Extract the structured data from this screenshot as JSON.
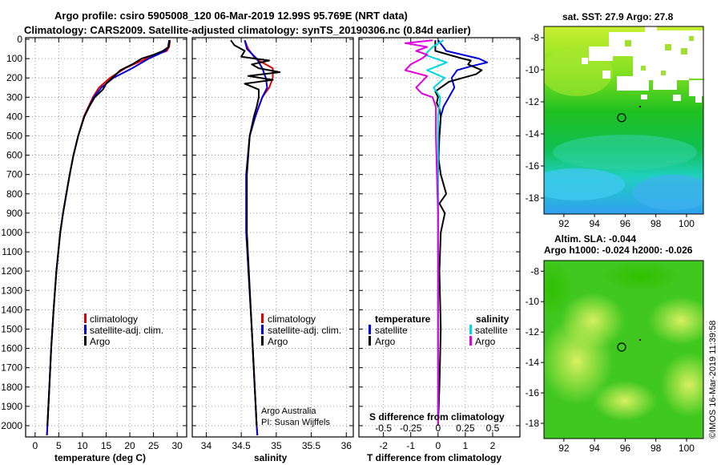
{
  "header": {
    "title_line1": "Argo profile: csiro 5905008_120 06-Mar-2019 12.99S 95.769E (NRT data)",
    "title_line2": "Climatology: CARS2009. Satellite-adjusted climatology: synTS_20190306.nc (0.84d earlier)"
  },
  "colors": {
    "climatology": "#e00000",
    "satellite": "#0000dd",
    "argo": "#000000",
    "salinity_sat": "#00d8e0",
    "salinity_argo": "#e000e0"
  },
  "chart_data": [
    {
      "type": "line",
      "id": "temperature",
      "xlabel": "temperature (deg C)",
      "ylabel": "",
      "xlim": [
        -2,
        32
      ],
      "ylim": [
        2050,
        0
      ],
      "xticks": [
        0,
        5,
        10,
        15,
        20,
        25,
        30
      ],
      "yticks": [
        0,
        100,
        200,
        300,
        400,
        500,
        600,
        700,
        800,
        900,
        1000,
        1100,
        1200,
        1300,
        1400,
        1500,
        1600,
        1700,
        1800,
        1900,
        2000
      ],
      "legend": [
        "climatology",
        "satellite-adj. clim.",
        "Argo"
      ],
      "series": [
        {
          "name": "climatology",
          "depth": [
            5,
            40,
            60,
            80,
            100,
            150,
            200,
            250,
            300,
            400,
            500,
            600,
            700,
            800,
            900,
            1000,
            1200,
            1400,
            1600,
            1800,
            2000,
            2050
          ],
          "values": [
            28.5,
            28.3,
            27.8,
            25.5,
            23.5,
            19.0,
            15.8,
            13.5,
            12.2,
            10.3,
            9.1,
            8.1,
            7.3,
            6.6,
            5.9,
            5.3,
            4.5,
            3.9,
            3.4,
            3.0,
            2.6,
            2.5
          ]
        },
        {
          "name": "satellite-adj. clim.",
          "depth": [
            5,
            40,
            60,
            80,
            100,
            150,
            200,
            250,
            300,
            400,
            500,
            600,
            700,
            800,
            900,
            1000,
            1200,
            1400,
            1600,
            1800,
            2000,
            2050
          ],
          "values": [
            28.3,
            28.1,
            27.5,
            25.8,
            24.0,
            20.5,
            16.5,
            14.0,
            12.4,
            10.4,
            9.1,
            8.1,
            7.3,
            6.6,
            5.9,
            5.3,
            4.5,
            3.9,
            3.4,
            3.0,
            2.6,
            2.5
          ]
        },
        {
          "name": "Argo",
          "depth": [
            5,
            40,
            60,
            80,
            100,
            130,
            160,
            200,
            230,
            260,
            300,
            350,
            400,
            500,
            600,
            700,
            800,
            900,
            1000,
            1200,
            1400,
            1600,
            1800,
            2000
          ],
          "values": [
            28.4,
            28.2,
            27.0,
            25.0,
            22.5,
            20.5,
            18.0,
            16.3,
            15.0,
            14.3,
            12.6,
            11.4,
            10.4,
            9.1,
            8.1,
            7.3,
            6.6,
            5.9,
            5.3,
            4.5,
            3.9,
            3.4,
            3.0,
            2.6
          ]
        }
      ]
    },
    {
      "type": "line",
      "id": "salinity",
      "xlabel": "salinity",
      "xlim": [
        33.8,
        36.1
      ],
      "ylim": [
        2050,
        0
      ],
      "xticks": [
        34,
        34.5,
        35,
        35.5,
        36
      ],
      "legend": [
        "climatology",
        "satellite-adj. clim.",
        "Argo"
      ],
      "annotation": [
        "Argo Australia",
        "PI: Susan Wijffels"
      ],
      "series": [
        {
          "name": "climatology",
          "depth": [
            5,
            50,
            100,
            150,
            200,
            250,
            300,
            350,
            400,
            500,
            700,
            1000,
            1500,
            2000,
            2050
          ],
          "values": [
            34.55,
            34.6,
            34.7,
            34.95,
            34.95,
            34.9,
            34.8,
            34.75,
            34.7,
            34.62,
            34.57,
            34.57,
            34.65,
            34.72,
            34.73
          ]
        },
        {
          "name": "satellite-adj. clim.",
          "depth": [
            5,
            50,
            100,
            150,
            200,
            250,
            300,
            350,
            400,
            500,
            700,
            1000,
            1500,
            2000,
            2050
          ],
          "values": [
            34.55,
            34.58,
            34.72,
            34.8,
            34.85,
            34.87,
            34.8,
            34.75,
            34.7,
            34.62,
            34.57,
            34.57,
            34.65,
            34.72,
            34.73
          ]
        },
        {
          "name": "Argo",
          "depth": [
            5,
            30,
            60,
            90,
            110,
            130,
            150,
            170,
            190,
            210,
            230,
            260,
            300,
            350,
            400,
            500,
            700,
            1000,
            1500,
            2000
          ],
          "values": [
            34.35,
            34.4,
            34.55,
            34.5,
            34.9,
            34.65,
            34.75,
            35.05,
            34.6,
            34.95,
            34.55,
            34.75,
            34.75,
            34.72,
            34.68,
            34.62,
            34.58,
            34.58,
            34.65,
            34.72
          ]
        }
      ]
    },
    {
      "type": "line",
      "id": "difference",
      "xlabel": "T difference from climatology",
      "xlim": [
        -2.9,
        3.0
      ],
      "ylim": [
        2050,
        0
      ],
      "xticks": [
        -2,
        -1,
        0,
        1,
        2
      ],
      "top_xlabel": "S difference from climatology",
      "top_xtick_labels": [
        "-0.5",
        "-0.25",
        "0",
        "0.25",
        "0.5"
      ],
      "top_xticks": [
        -0.5,
        -0.25,
        0,
        0.25,
        0.5
      ],
      "legend_titles": [
        "temperature",
        "salinity"
      ],
      "legend_left": [
        "satellite",
        "Argo"
      ],
      "legend_right": [
        "satellite",
        "Argo"
      ],
      "series": [
        {
          "name": "T satellite",
          "depth": [
            5,
            60,
            100,
            120,
            140,
            160,
            200,
            250,
            300,
            350,
            400,
            500,
            700,
            1000,
            1500,
            2000
          ],
          "values": [
            0,
            0.3,
            1.5,
            1.8,
            1.2,
            0.7,
            0.5,
            0.6,
            0.4,
            0.2,
            0.1,
            0.05,
            0,
            0,
            0,
            0
          ]
        },
        {
          "name": "T Argo",
          "depth": [
            5,
            60,
            100,
            110,
            130,
            160,
            180,
            200,
            220,
            250,
            270,
            300,
            330,
            360,
            400,
            500,
            600,
            700,
            800,
            850,
            900,
            1000,
            1200,
            1500,
            1800,
            2000
          ],
          "values": [
            -0.1,
            -0.1,
            0.9,
            1.2,
            1.1,
            1.6,
            1.4,
            0.9,
            0.4,
            0.1,
            -0.1,
            0,
            -0.05,
            0.05,
            0.1,
            0.05,
            0,
            0.1,
            0.3,
            0.05,
            0.25,
            0.1,
            0.05,
            0.1,
            0.05,
            0
          ]
        },
        {
          "name": "S satellite",
          "depth": [
            5,
            40,
            80,
            120,
            160,
            200,
            250,
            300,
            400,
            600,
            1000,
            1500,
            2000
          ],
          "values": [
            0.05,
            -0.05,
            -0.12,
            0.08,
            -0.1,
            0.06,
            -0.04,
            0.02,
            0,
            0,
            0,
            0,
            0
          ]
        },
        {
          "name": "S Argo",
          "depth": [
            5,
            20,
            40,
            60,
            80,
            100,
            130,
            160,
            190,
            220,
            250,
            280,
            300,
            350,
            400,
            500,
            700,
            900,
            1000,
            1200,
            1500,
            2000
          ],
          "values": [
            -0.05,
            -0.3,
            -0.1,
            -0.2,
            -0.1,
            -0.15,
            -0.25,
            -0.3,
            -0.1,
            -0.15,
            -0.2,
            -0.15,
            -0.05,
            -0.02,
            -0.02,
            -0.02,
            -0.01,
            0,
            0,
            0,
            0,
            0
          ]
        }
      ]
    },
    {
      "type": "heatmap",
      "id": "sst-map",
      "title": "sat. SST: 27.9 Argo: 27.8",
      "xlim": [
        90.7,
        101.1
      ],
      "ylim": [
        -19,
        -7.3
      ],
      "xticks": [
        92,
        94,
        96,
        98,
        100
      ],
      "yticks": [
        -8,
        -10,
        -12,
        -14,
        -16,
        -18
      ],
      "marker": {
        "lon": 95.769,
        "lat": -12.99
      }
    },
    {
      "type": "heatmap",
      "id": "sla-map",
      "title_line1": "Altim. SLA: -0.044",
      "title_line2": "Argo h1000: -0.024 h2000: -0.026",
      "xlim": [
        90.7,
        101.1
      ],
      "ylim": [
        -19,
        -7.3
      ],
      "xticks": [
        92,
        94,
        96,
        98,
        100
      ],
      "yticks": [
        -8,
        -10,
        -12,
        -14,
        -16,
        -18
      ],
      "marker": {
        "lon": 95.769,
        "lat": -12.99
      }
    }
  ],
  "footer": {
    "stamp": "©IMOS 16-Mar-2019 11:39:58"
  }
}
